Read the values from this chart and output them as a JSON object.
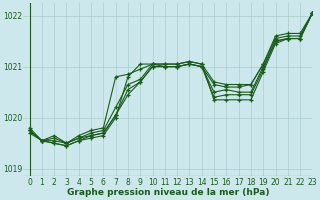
{
  "title": "Graphe pression niveau de la mer (hPa)",
  "bg_color": "#cce8ec",
  "grid_color": "#aacccc",
  "line_color": "#1a5c1a",
  "xlim": [
    -0.5,
    23
  ],
  "ylim": [
    1018.85,
    1022.25
  ],
  "yticks": [
    1019,
    1020,
    1021,
    1022
  ],
  "xticks": [
    0,
    1,
    2,
    3,
    4,
    5,
    6,
    7,
    8,
    9,
    10,
    11,
    12,
    13,
    14,
    15,
    16,
    17,
    18,
    19,
    20,
    21,
    22,
    23
  ],
  "series": [
    [
      1019.7,
      1019.55,
      1019.65,
      1019.5,
      1019.65,
      1019.75,
      1019.8,
      1020.8,
      1020.85,
      1020.95,
      1021.05,
      1021.0,
      1021.0,
      1021.05,
      1021.0,
      1020.65,
      1020.6,
      1020.6,
      1020.65,
      1021.05,
      1021.6,
      1021.65,
      1021.65,
      1022.05
    ],
    [
      1019.75,
      1019.55,
      1019.6,
      1019.5,
      1019.6,
      1019.7,
      1019.75,
      1020.2,
      1020.65,
      1020.75,
      1021.05,
      1021.05,
      1021.05,
      1021.1,
      1021.05,
      1020.7,
      1020.65,
      1020.65,
      1020.65,
      1021.05,
      1021.55,
      1021.6,
      1021.6,
      1022.05
    ],
    [
      1019.75,
      1019.55,
      1019.55,
      1019.5,
      1019.6,
      1019.65,
      1019.7,
      1020.05,
      1020.55,
      1020.7,
      1021.0,
      1021.0,
      1021.0,
      1021.05,
      1021.0,
      1020.5,
      1020.55,
      1020.5,
      1020.5,
      1021.0,
      1021.5,
      1021.55,
      1021.55,
      1022.05
    ],
    [
      1019.75,
      1019.55,
      1019.5,
      1019.45,
      1019.55,
      1019.65,
      1019.7,
      1020.05,
      1020.45,
      1020.7,
      1021.0,
      1021.0,
      1021.0,
      1021.05,
      1021.0,
      1020.4,
      1020.45,
      1020.45,
      1020.45,
      1020.95,
      1021.5,
      1021.55,
      1021.55,
      1022.05
    ],
    [
      1019.8,
      1019.55,
      1019.5,
      1019.45,
      1019.55,
      1019.6,
      1019.65,
      1020.0,
      1020.8,
      1021.05,
      1021.05,
      1021.05,
      1021.05,
      1021.1,
      1021.05,
      1020.35,
      1020.35,
      1020.35,
      1020.35,
      1020.9,
      1021.45,
      1021.55,
      1021.55,
      1022.05
    ]
  ],
  "marker": "+",
  "markersize": 3.5,
  "linewidth": 0.8,
  "label_fontsize": 6.5,
  "tick_fontsize": 5.5
}
